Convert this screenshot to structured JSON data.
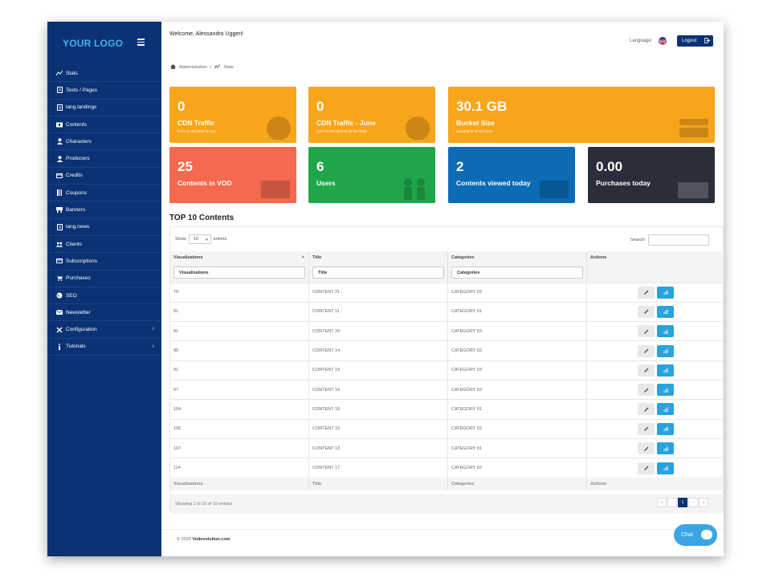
{
  "sidebar": {
    "logo": "YOUR LOGO",
    "items": [
      {
        "label": "Stats",
        "icon": "chart-line-icon"
      },
      {
        "label": "Texts / Pages",
        "icon": "document-icon"
      },
      {
        "label": "lang.landings",
        "icon": "document-icon"
      },
      {
        "label": "Contents",
        "icon": "film-icon"
      },
      {
        "label": "Characters",
        "icon": "user-icon"
      },
      {
        "label": "Producers",
        "icon": "user-icon"
      },
      {
        "label": "Credits",
        "icon": "card-icon"
      },
      {
        "label": "Coupons",
        "icon": "coupon-icon"
      },
      {
        "label": "Banners",
        "icon": "banner-icon"
      },
      {
        "label": "lang.news",
        "icon": "document-icon"
      },
      {
        "label": "Clients",
        "icon": "users-icon"
      },
      {
        "label": "Subscriptions",
        "icon": "card-icon"
      },
      {
        "label": "Purchases",
        "icon": "cart-icon"
      },
      {
        "label": "SEO",
        "icon": "globe-icon"
      },
      {
        "label": "Newsletter",
        "icon": "envelope-icon"
      },
      {
        "label": "Configuration",
        "icon": "tools-icon"
      },
      {
        "label": "Tutorials",
        "icon": "info-icon"
      }
    ]
  },
  "topbar": {
    "welcome": "Welcome, Alessandro Uggeri!",
    "language_label": "Language:",
    "logout_label": "Logout"
  },
  "breadcrumb": {
    "root": "Administration",
    "separator": "/",
    "current": "Stats"
  },
  "tiles": [
    {
      "value": "0",
      "label": "CDN Traffic",
      "sub": "from 01-06-2020 to now",
      "color": "#f9a51b"
    },
    {
      "value": "0",
      "label": "CDN Traffic - June",
      "sub": "from 01-06-2020 to 29-06-2020",
      "color": "#f9a51b"
    },
    {
      "value": "30.1 GB",
      "label": "Bucket Size",
      "sub": "updated at 30-06-2020",
      "color": "#f9a51b"
    },
    {
      "value": "25",
      "label": "Contents in VOD",
      "color": "#f4694f"
    },
    {
      "value": "6",
      "label": "Users",
      "color": "#20a64a"
    },
    {
      "value": "2",
      "label": "Contents viewed today",
      "color": "#0c6bb5"
    },
    {
      "value": "0.00",
      "label": "Purchases today",
      "color": "#2a2d3a"
    }
  ],
  "top_contents": {
    "title": "TOP 10 Contents",
    "show_label": "Show",
    "entries_value": "10",
    "entries_label": "entries",
    "search_label": "Search:",
    "columns": [
      "Visualizations",
      "Title",
      "Categories",
      "Actions"
    ],
    "filters": [
      "Visualizations",
      "Title",
      "Categories"
    ],
    "rows": [
      [
        "79",
        "CONTENT 21",
        "CATEGORY 03"
      ],
      [
        "81",
        "CONTENT 11",
        "CATEGORY 01"
      ],
      [
        "81",
        "CONTENT 20",
        "CATEGORY 03"
      ],
      [
        "90",
        "CONTENT 14",
        "CATEGORY 02"
      ],
      [
        "91",
        "CONTENT 19",
        "CATEGORY 03"
      ],
      [
        "97",
        "CONTENT 16",
        "CATEGORY 03"
      ],
      [
        "104",
        "CONTENT 18",
        "CATEGORY 01"
      ],
      [
        "105",
        "CONTENT 15",
        "CATEGORY 02"
      ],
      [
        "107",
        "CONTENT 13",
        "CATEGORY 01"
      ],
      [
        "114",
        "CONTENT 17",
        "CATEGORY 03"
      ]
    ],
    "showing": "Showing 1 to 10 of 10 entries",
    "pager": [
      "«",
      "‹",
      "1",
      "›",
      "»"
    ],
    "current_page": "1"
  },
  "footer": {
    "copyright_prefix": "© 2020",
    "company": "Vodevolution.com"
  },
  "chat": {
    "label": "Chat"
  },
  "colors": {
    "sidebar": "#0a3274",
    "logo": "#48b0ea",
    "accent": "#2aa2e0"
  }
}
